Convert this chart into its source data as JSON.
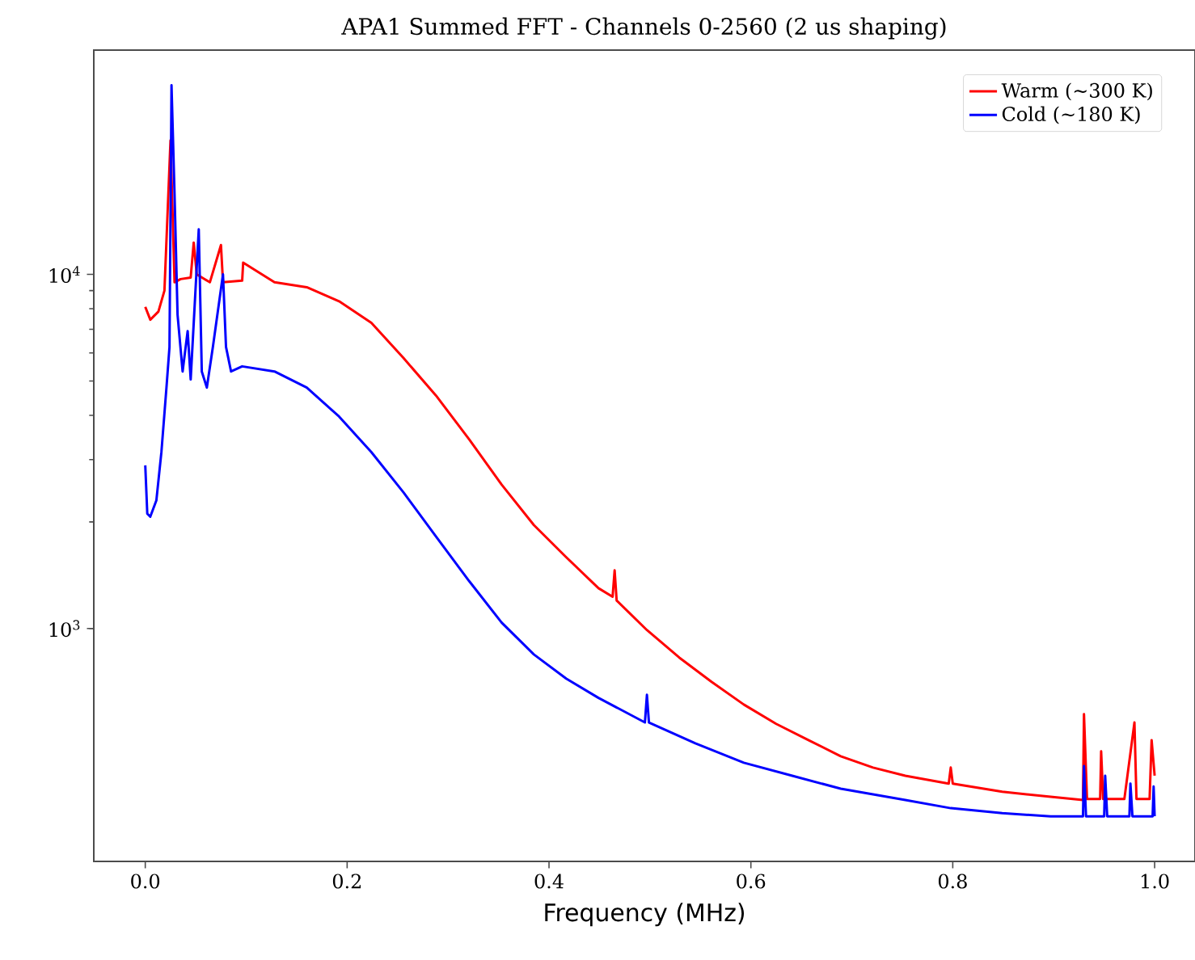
{
  "chart_data": {
    "type": "line",
    "title": "APA1 Summed FFT - Channels 0-2560 (2 us shaping)",
    "xlabel": "Frequency (MHz)",
    "xlim": [
      -0.051,
      1.04
    ],
    "ylim": [
      220,
      43000
    ],
    "log": "y",
    "legend": "top right",
    "grid": false,
    "xticks": [
      {
        "value": 0,
        "label": "0.0"
      },
      0.2,
      0.4,
      0.6,
      0.8,
      {
        "value": 1,
        "label": "1.0"
      }
    ],
    "yticks": [
      {
        "value": 1000,
        "label": "10$^{3}$"
      },
      {
        "value": 10000,
        "label": "10$^{4}$"
      }
    ],
    "series": [
      {
        "name": "Warm (~300 K)",
        "color": "#ff0000",
        "x": [
          0,
          0.005,
          0.013,
          0.019,
          0.025,
          0.029,
          0.035,
          0.045,
          0.048,
          0.051,
          0.064,
          0.075,
          0.077,
          0.096,
          0.097,
          0.128,
          0.16,
          0.192,
          0.224,
          0.256,
          0.288,
          0.321,
          0.353,
          0.385,
          0.417,
          0.449,
          0.463,
          0.465,
          0.467,
          0.497,
          0.529,
          0.561,
          0.593,
          0.625,
          0.657,
          0.689,
          0.721,
          0.753,
          0.796,
          0.798,
          0.8,
          0.849,
          0.897,
          0.929,
          0.93,
          0.933,
          0.946,
          0.947,
          0.949,
          0.97,
          0.98,
          0.982,
          0.995,
          0.997,
          1.0
        ],
        "values": [
          8100,
          7450,
          7850,
          9000,
          23900,
          9500,
          9700,
          9800,
          12300,
          10000,
          9500,
          12100,
          9500,
          9600,
          10800,
          9500,
          9200,
          8400,
          7300,
          5800,
          4550,
          3420,
          2550,
          1960,
          1590,
          1300,
          1230,
          1460,
          1200,
          990,
          828,
          707,
          610,
          538,
          484,
          436,
          405,
          384,
          365,
          405,
          365,
          346,
          335,
          328,
          573,
          330,
          330,
          450,
          330,
          330,
          543,
          330,
          330,
          484,
          384
        ]
      },
      {
        "name": "Cold (~180 K)",
        "color": "#0000ff",
        "x": [
          0,
          0.002,
          0.005,
          0.011,
          0.016,
          0.021,
          0.024,
          0.026,
          0.029,
          0.032,
          0.037,
          0.042,
          0.045,
          0.053,
          0.056,
          0.061,
          0.067,
          0.077,
          0.08,
          0.085,
          0.096,
          0.128,
          0.16,
          0.192,
          0.224,
          0.256,
          0.288,
          0.321,
          0.353,
          0.385,
          0.417,
          0.449,
          0.495,
          0.497,
          0.499,
          0.545,
          0.593,
          0.641,
          0.689,
          0.753,
          0.798,
          0.849,
          0.897,
          0.929,
          0.93,
          0.932,
          0.95,
          0.951,
          0.953,
          0.975,
          0.976,
          0.978,
          0.998,
          0.999,
          1.0
        ],
        "values": [
          2890,
          2110,
          2070,
          2300,
          3150,
          4790,
          6240,
          34200,
          16900,
          7690,
          5320,
          6920,
          5050,
          13400,
          5320,
          4790,
          6240,
          10000,
          6240,
          5320,
          5500,
          5320,
          4790,
          3970,
          3150,
          2420,
          1820,
          1360,
          1040,
          845,
          722,
          637,
          543,
          650,
          543,
          474,
          418,
          384,
          353,
          328,
          311,
          301,
          295,
          295,
          409,
          295,
          295,
          384,
          295,
          295,
          365,
          295,
          295,
          358,
          295
        ]
      }
    ]
  }
}
